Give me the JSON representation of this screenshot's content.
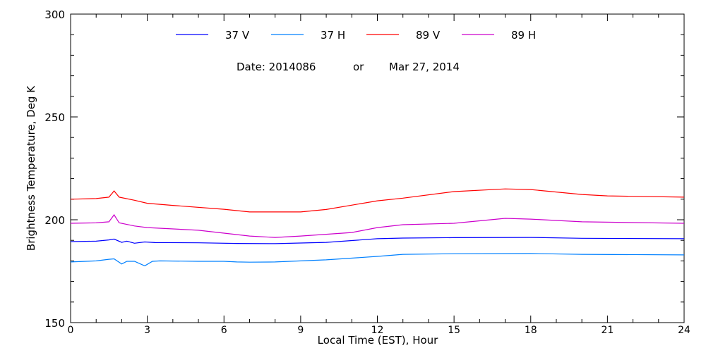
{
  "chart_data": {
    "type": "line",
    "title": "",
    "subtitle_date": "Date: 2014086",
    "subtitle_or": "or",
    "subtitle_calendar": "Mar 27, 2014",
    "xlabel": "Local Time (EST), Hour",
    "ylabel": "Brightness Temperature, Deg K",
    "xlim": [
      0,
      24
    ],
    "ylim": [
      150,
      300
    ],
    "xticks": [
      0,
      3,
      6,
      9,
      12,
      15,
      18,
      21,
      24
    ],
    "yticks": [
      150,
      200,
      250,
      300
    ],
    "legend_placement": "top-center",
    "grid": false,
    "series": [
      {
        "name": "37 V",
        "color": "#0000ff",
        "x": [
          0,
          1,
          1.5,
          1.7,
          2.0,
          2.2,
          2.5,
          2.9,
          3.3,
          5,
          6.5,
          8,
          10,
          12,
          13,
          15,
          18,
          20,
          24
        ],
        "y": [
          189.4,
          189.6,
          190.2,
          190.6,
          189.0,
          189.6,
          188.6,
          189.2,
          188.9,
          188.8,
          188.5,
          188.4,
          189.0,
          190.8,
          191.1,
          191.3,
          191.4,
          191.0,
          190.8
        ]
      },
      {
        "name": "37 H",
        "color": "#0080ff",
        "x": [
          0,
          1,
          1.5,
          1.7,
          2.0,
          2.2,
          2.5,
          2.9,
          3.2,
          3.5,
          5,
          6,
          6.5,
          7,
          8,
          10,
          12,
          13,
          15,
          18,
          20,
          24
        ],
        "y": [
          179.5,
          180.0,
          180.8,
          181.0,
          178.5,
          179.8,
          179.8,
          177.6,
          179.8,
          180.0,
          179.8,
          179.8,
          179.5,
          179.4,
          179.5,
          180.5,
          182.2,
          183.2,
          183.5,
          183.6,
          183.2,
          182.9
        ]
      },
      {
        "name": "89 V",
        "color": "#ff0000",
        "x": [
          0,
          1,
          1.5,
          1.7,
          1.9,
          2.5,
          3,
          4,
          6,
          7,
          9,
          10,
          12,
          13,
          15,
          17,
          18,
          20,
          21,
          24
        ],
        "y": [
          210.0,
          210.3,
          211.0,
          214.0,
          211.0,
          209.5,
          208.0,
          207.0,
          205.1,
          203.8,
          203.8,
          205.0,
          209.2,
          210.5,
          213.7,
          215.0,
          214.7,
          212.3,
          211.6,
          211.0
        ]
      },
      {
        "name": "89 H",
        "color": "#cc00cc",
        "x": [
          0,
          1,
          1.5,
          1.7,
          1.9,
          2.5,
          3,
          5,
          7,
          8,
          9,
          11,
          12,
          13,
          15,
          17,
          18,
          20,
          24
        ],
        "y": [
          198.3,
          198.5,
          199.0,
          202.4,
          198.5,
          197.0,
          196.2,
          194.9,
          192.1,
          191.4,
          192.1,
          193.8,
          196.2,
          197.6,
          198.3,
          200.7,
          200.3,
          199.0,
          198.3
        ]
      }
    ]
  }
}
